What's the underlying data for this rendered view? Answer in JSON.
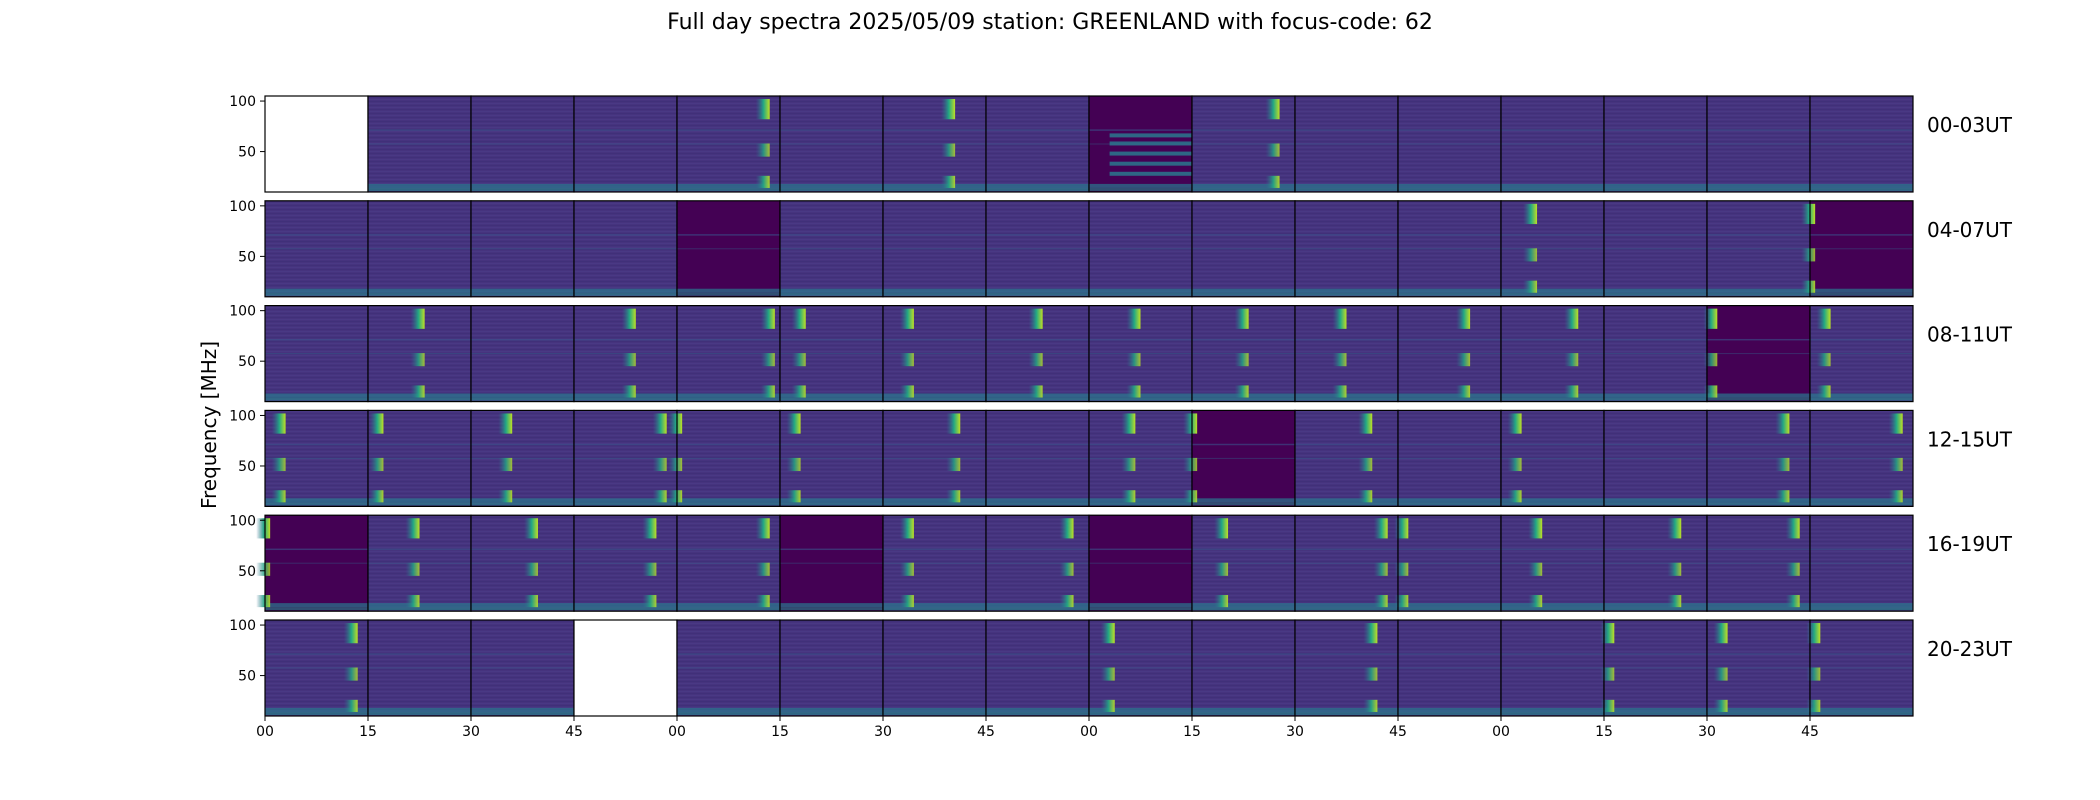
{
  "chart_data": {
    "type": "heatmap",
    "title": "Full day spectra 2025/05/09 station: GREENLAND with focus-code: 62",
    "ylabel": "Frequency [MHz]",
    "xlabel": "",
    "ylim": [
      10,
      105
    ],
    "yticks": [
      50,
      100
    ],
    "xtick_labels": [
      "00",
      "15",
      "30",
      "45",
      "00",
      "15",
      "30",
      "45",
      "00",
      "15",
      "30",
      "45",
      "00",
      "15",
      "30",
      "45"
    ],
    "colormap": "viridis",
    "colors": {
      "background": "#46337e",
      "dark": "#440154",
      "band": "#2a788e",
      "burst": "#22a884",
      "peak": "#bddf26"
    },
    "panels_per_row": 16,
    "rows": [
      {
        "label": "00-03UT",
        "missing": [
          0
        ],
        "quiet": [
          8
        ],
        "bursts": [
          [
            4,
            0.9
          ],
          [
            6,
            0.7
          ],
          [
            9,
            0.85
          ]
        ]
      },
      {
        "label": "04-07UT",
        "missing": [],
        "quiet": [
          4,
          15
        ],
        "bursts": [
          [
            12,
            0.35
          ],
          [
            15,
            0.05
          ]
        ]
      },
      {
        "label": "08-11UT",
        "missing": [],
        "quiet": [
          14
        ],
        "bursts": [
          [
            1,
            0.55
          ],
          [
            3,
            0.6
          ],
          [
            4,
            0.95
          ],
          [
            5,
            0.25
          ],
          [
            6,
            0.3
          ],
          [
            7,
            0.55
          ],
          [
            8,
            0.5
          ],
          [
            9,
            0.55
          ],
          [
            10,
            0.5
          ],
          [
            11,
            0.7
          ],
          [
            12,
            0.75
          ],
          [
            14,
            0.1
          ],
          [
            15,
            0.2
          ]
        ]
      },
      {
        "label": "12-15UT",
        "missing": [],
        "quiet": [
          9
        ],
        "bursts": [
          [
            0,
            0.2
          ],
          [
            1,
            0.15
          ],
          [
            2,
            0.4
          ],
          [
            3,
            0.9
          ],
          [
            4,
            0.05
          ],
          [
            5,
            0.2
          ],
          [
            6,
            0.75
          ],
          [
            8,
            0.45
          ],
          [
            9,
            0.05
          ],
          [
            10,
            0.75
          ],
          [
            12,
            0.2
          ],
          [
            14,
            0.8
          ],
          [
            15,
            0.9
          ]
        ]
      },
      {
        "label": "16-19UT",
        "missing": [],
        "quiet": [
          0,
          5,
          8
        ],
        "bursts": [
          [
            0,
            0.05
          ],
          [
            1,
            0.5
          ],
          [
            2,
            0.65
          ],
          [
            3,
            0.8
          ],
          [
            4,
            0.9
          ],
          [
            6,
            0.3
          ],
          [
            7,
            0.85
          ],
          [
            9,
            0.35
          ],
          [
            10,
            0.9
          ],
          [
            11,
            0.1
          ],
          [
            12,
            0.4
          ],
          [
            13,
            0.75
          ],
          [
            14,
            0.9
          ]
        ]
      },
      {
        "label": "20-23UT",
        "missing": [
          3
        ],
        "quiet": [],
        "bursts": [
          [
            0,
            0.9
          ],
          [
            8,
            0.25
          ],
          [
            10,
            0.8
          ],
          [
            13,
            0.1
          ],
          [
            14,
            0.2
          ],
          [
            15,
            0.1
          ]
        ]
      }
    ]
  }
}
